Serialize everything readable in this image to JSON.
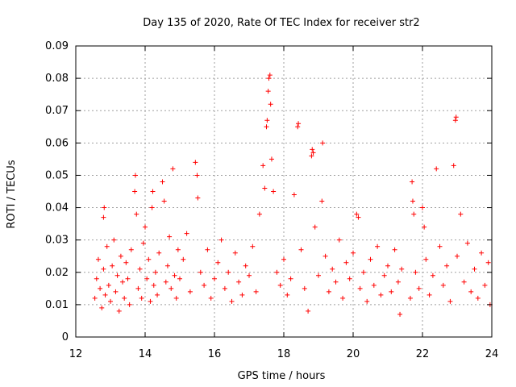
{
  "chart_data": {
    "type": "scatter",
    "title": "Day 135 of 2020, Rate Of TEC Index for receiver str2",
    "xlabel": "GPS time / hours",
    "ylabel": "ROTI / TECUs",
    "xlim": [
      12,
      24
    ],
    "ylim": [
      0,
      0.09
    ],
    "xticks": [
      12,
      14,
      16,
      18,
      20,
      22,
      24
    ],
    "xtick_labels": [
      "12",
      "14",
      "16",
      "18",
      "20",
      "22",
      "24"
    ],
    "yticks": [
      0,
      0.01,
      0.02,
      0.03,
      0.04,
      0.05,
      0.06,
      0.07,
      0.08,
      0.09
    ],
    "ytick_labels": [
      "0",
      "0.01",
      "0.02",
      "0.03",
      "0.04",
      "0.05",
      "0.06",
      "0.07",
      "0.08",
      "0.09"
    ],
    "grid": true,
    "marker": "+",
    "color": "#ff0000",
    "series": [
      {
        "name": "ROTI str2",
        "points": [
          [
            12.55,
            0.012
          ],
          [
            12.6,
            0.018
          ],
          [
            12.65,
            0.024
          ],
          [
            12.7,
            0.015
          ],
          [
            12.75,
            0.009
          ],
          [
            12.8,
            0.021
          ],
          [
            12.8,
            0.037
          ],
          [
            12.82,
            0.04
          ],
          [
            12.85,
            0.013
          ],
          [
            12.9,
            0.028
          ],
          [
            12.95,
            0.016
          ],
          [
            13.0,
            0.011
          ],
          [
            13.05,
            0.022
          ],
          [
            13.1,
            0.03
          ],
          [
            13.15,
            0.014
          ],
          [
            13.2,
            0.019
          ],
          [
            13.25,
            0.008
          ],
          [
            13.3,
            0.025
          ],
          [
            13.35,
            0.017
          ],
          [
            13.4,
            0.012
          ],
          [
            13.45,
            0.023
          ],
          [
            13.5,
            0.018
          ],
          [
            13.55,
            0.01
          ],
          [
            13.6,
            0.027
          ],
          [
            13.7,
            0.045
          ],
          [
            13.72,
            0.05
          ],
          [
            13.75,
            0.038
          ],
          [
            13.8,
            0.015
          ],
          [
            13.85,
            0.021
          ],
          [
            13.9,
            0.012
          ],
          [
            13.95,
            0.029
          ],
          [
            14.0,
            0.034
          ],
          [
            14.05,
            0.018
          ],
          [
            14.1,
            0.024
          ],
          [
            14.15,
            0.011
          ],
          [
            14.2,
            0.04
          ],
          [
            14.22,
            0.045
          ],
          [
            14.25,
            0.016
          ],
          [
            14.3,
            0.02
          ],
          [
            14.35,
            0.013
          ],
          [
            14.4,
            0.026
          ],
          [
            14.5,
            0.048
          ],
          [
            14.55,
            0.042
          ],
          [
            14.6,
            0.017
          ],
          [
            14.65,
            0.022
          ],
          [
            14.7,
            0.031
          ],
          [
            14.75,
            0.015
          ],
          [
            14.8,
            0.052
          ],
          [
            14.85,
            0.019
          ],
          [
            14.9,
            0.012
          ],
          [
            14.95,
            0.027
          ],
          [
            15.0,
            0.018
          ],
          [
            15.1,
            0.024
          ],
          [
            15.2,
            0.032
          ],
          [
            15.3,
            0.014
          ],
          [
            15.45,
            0.054
          ],
          [
            15.5,
            0.05
          ],
          [
            15.52,
            0.043
          ],
          [
            15.6,
            0.02
          ],
          [
            15.7,
            0.016
          ],
          [
            15.8,
            0.027
          ],
          [
            15.9,
            0.012
          ],
          [
            16.0,
            0.018
          ],
          [
            16.1,
            0.023
          ],
          [
            16.2,
            0.03
          ],
          [
            16.3,
            0.015
          ],
          [
            16.4,
            0.02
          ],
          [
            16.5,
            0.011
          ],
          [
            16.6,
            0.026
          ],
          [
            16.7,
            0.017
          ],
          [
            16.8,
            0.013
          ],
          [
            16.9,
            0.022
          ],
          [
            17.0,
            0.019
          ],
          [
            17.1,
            0.028
          ],
          [
            17.2,
            0.014
          ],
          [
            17.3,
            0.038
          ],
          [
            17.4,
            0.053
          ],
          [
            17.45,
            0.046
          ],
          [
            17.5,
            0.065
          ],
          [
            17.52,
            0.067
          ],
          [
            17.55,
            0.076
          ],
          [
            17.57,
            0.08
          ],
          [
            17.6,
            0.081
          ],
          [
            17.62,
            0.072
          ],
          [
            17.65,
            0.055
          ],
          [
            17.7,
            0.045
          ],
          [
            17.8,
            0.02
          ],
          [
            17.9,
            0.016
          ],
          [
            18.0,
            0.024
          ],
          [
            18.1,
            0.013
          ],
          [
            18.2,
            0.018
          ],
          [
            18.3,
            0.044
          ],
          [
            18.4,
            0.065
          ],
          [
            18.42,
            0.066
          ],
          [
            18.5,
            0.027
          ],
          [
            18.6,
            0.015
          ],
          [
            18.7,
            0.008
          ],
          [
            18.8,
            0.056
          ],
          [
            18.82,
            0.058
          ],
          [
            18.85,
            0.057
          ],
          [
            18.9,
            0.034
          ],
          [
            19.0,
            0.019
          ],
          [
            19.1,
            0.042
          ],
          [
            19.12,
            0.06
          ],
          [
            19.2,
            0.025
          ],
          [
            19.3,
            0.014
          ],
          [
            19.4,
            0.021
          ],
          [
            19.5,
            0.017
          ],
          [
            19.6,
            0.03
          ],
          [
            19.7,
            0.012
          ],
          [
            19.8,
            0.023
          ],
          [
            19.9,
            0.018
          ],
          [
            20.0,
            0.026
          ],
          [
            20.1,
            0.038
          ],
          [
            20.15,
            0.037
          ],
          [
            20.2,
            0.015
          ],
          [
            20.3,
            0.02
          ],
          [
            20.4,
            0.011
          ],
          [
            20.5,
            0.024
          ],
          [
            20.6,
            0.016
          ],
          [
            20.7,
            0.028
          ],
          [
            20.8,
            0.013
          ],
          [
            20.9,
            0.019
          ],
          [
            21.0,
            0.022
          ],
          [
            21.1,
            0.014
          ],
          [
            21.2,
            0.027
          ],
          [
            21.3,
            0.017
          ],
          [
            21.35,
            0.007
          ],
          [
            21.4,
            0.021
          ],
          [
            21.65,
            0.012
          ],
          [
            21.7,
            0.048
          ],
          [
            21.72,
            0.042
          ],
          [
            21.75,
            0.038
          ],
          [
            21.8,
            0.02
          ],
          [
            21.9,
            0.015
          ],
          [
            22.0,
            0.04
          ],
          [
            22.05,
            0.034
          ],
          [
            22.1,
            0.024
          ],
          [
            22.2,
            0.013
          ],
          [
            22.3,
            0.019
          ],
          [
            22.4,
            0.052
          ],
          [
            22.5,
            0.028
          ],
          [
            22.6,
            0.016
          ],
          [
            22.7,
            0.022
          ],
          [
            22.8,
            0.011
          ],
          [
            22.9,
            0.053
          ],
          [
            22.95,
            0.067
          ],
          [
            22.97,
            0.068
          ],
          [
            23.0,
            0.025
          ],
          [
            23.1,
            0.038
          ],
          [
            23.2,
            0.017
          ],
          [
            23.3,
            0.029
          ],
          [
            23.4,
            0.014
          ],
          [
            23.5,
            0.021
          ],
          [
            23.6,
            0.012
          ],
          [
            23.7,
            0.026
          ],
          [
            23.8,
            0.016
          ],
          [
            23.9,
            0.023
          ],
          [
            23.95,
            0.01
          ]
        ]
      }
    ]
  }
}
